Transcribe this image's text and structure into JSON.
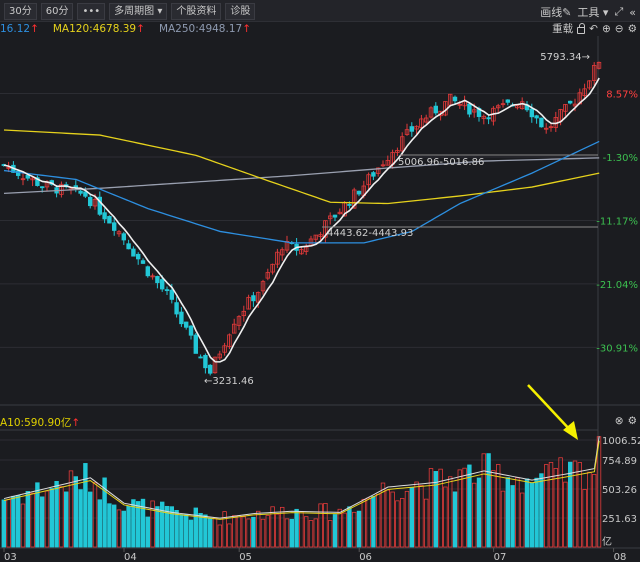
{
  "toolbar": {
    "buttons": [
      "30分",
      "60分",
      "•••",
      "多周期图 ▾",
      "个股资料",
      "诊股"
    ],
    "draw": "画线",
    "tools": "工具 ▾",
    "reload": "重载"
  },
  "legend": {
    "ma_a": "16.12",
    "ma120": "MA120:4678.39",
    "ma250": "MA250:4948.17",
    "arrow": "↑"
  },
  "vol_legend": {
    "text": "A10:590.90亿",
    "arrow": "↑"
  },
  "colors": {
    "up": "#e23a3a",
    "down": "#22c7d6",
    "ma5": "#f0f0f0",
    "ma_blue": "#2d8fe0",
    "ma120": "#e6d21c",
    "ma250": "#9aa0b0",
    "arrow": "#f5f000"
  },
  "chart_data": [
    {
      "type": "candlestick",
      "price_axis_labels": [
        {
          "label": "8.57%",
          "pct": 8.57
        },
        {
          "label": "-1.30%",
          "pct": -1.3
        },
        {
          "label": "-11.17%",
          "pct": -11.17
        },
        {
          "label": "-21.04%",
          "pct": -21.04
        },
        {
          "label": "-30.91%",
          "pct": -30.91
        }
      ],
      "annotations": {
        "high": "5793.34",
        "low": "3231.46",
        "range1": "5006.96-5016.86",
        "range2": "4443.62-4443.93"
      },
      "x_labels": [
        "03",
        "04",
        "05",
        "06",
        "07",
        "08"
      ],
      "close_keypoints": [
        [
          0,
          4944
        ],
        [
          8,
          4786
        ],
        [
          17,
          4707
        ],
        [
          23,
          4471
        ],
        [
          29,
          4155
        ],
        [
          34,
          3919
        ],
        [
          40,
          3485
        ],
        [
          43,
          3311
        ],
        [
          48,
          3722
        ],
        [
          54,
          3998
        ],
        [
          58,
          4313
        ],
        [
          62,
          4274
        ],
        [
          69,
          4550
        ],
        [
          75,
          4786
        ],
        [
          81,
          5062
        ],
        [
          87,
          5299
        ],
        [
          93,
          5457
        ],
        [
          100,
          5338
        ],
        [
          108,
          5457
        ],
        [
          113,
          5220
        ],
        [
          119,
          5457
        ],
        [
          123,
          5693
        ],
        [
          124,
          5772
        ]
      ],
      "ma_blue_keypoints": [
        [
          0,
          4900
        ],
        [
          15,
          4830
        ],
        [
          30,
          4600
        ],
        [
          45,
          4420
        ],
        [
          60,
          4330
        ],
        [
          75,
          4330
        ],
        [
          85,
          4420
        ],
        [
          95,
          4640
        ],
        [
          110,
          4880
        ],
        [
          124,
          5130
        ]
      ],
      "ma120_keypoints": [
        [
          0,
          5220
        ],
        [
          20,
          5180
        ],
        [
          40,
          5020
        ],
        [
          55,
          4820
        ],
        [
          68,
          4650
        ],
        [
          80,
          4640
        ],
        [
          95,
          4700
        ],
        [
          110,
          4770
        ],
        [
          124,
          4880
        ]
      ],
      "ma250_keypoints": [
        [
          0,
          4720
        ],
        [
          20,
          4760
        ],
        [
          40,
          4810
        ],
        [
          60,
          4860
        ],
        [
          80,
          4920
        ],
        [
          100,
          4975
        ],
        [
          124,
          5000
        ]
      ]
    },
    {
      "type": "bar",
      "name": "volume",
      "y_labels": [
        "1006.52",
        "754.89",
        "503.26",
        "251.63",
        "亿"
      ],
      "volume_keypoints": [
        [
          0,
          420
        ],
        [
          10,
          520
        ],
        [
          18,
          600
        ],
        [
          25,
          380
        ],
        [
          35,
          300
        ],
        [
          45,
          250
        ],
        [
          52,
          290
        ],
        [
          60,
          310
        ],
        [
          70,
          300
        ],
        [
          80,
          520
        ],
        [
          90,
          560
        ],
        [
          100,
          660
        ],
        [
          110,
          580
        ],
        [
          118,
          640
        ],
        [
          123,
          680
        ],
        [
          124,
          960
        ]
      ]
    }
  ]
}
